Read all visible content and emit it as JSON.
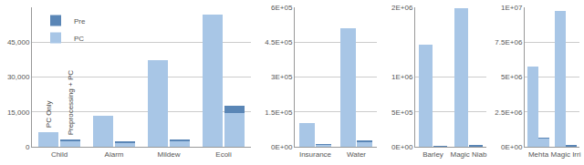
{
  "chart_data": [
    {
      "type": "bar",
      "stacked": true,
      "grid": true,
      "legend": "upper left",
      "bar_labels": [
        "PC Only",
        "Preprocessing + PC"
      ],
      "categories": [
        "Child",
        "Alarm",
        "Mildew",
        "Ecoli"
      ],
      "ylim": [
        0,
        60000
      ],
      "yticks": [
        0,
        {
          "value": 15000,
          "label": "15,000"
        },
        {
          "value": 30000,
          "label": "30,000"
        },
        {
          "value": 45000,
          "label": "45,000"
        }
      ],
      "series": [
        {
          "name": "PC",
          "color": "#a8c6e6",
          "values": [
            [
              6200,
              2700
            ],
            [
              13500,
              1900
            ],
            [
              37300,
              2500
            ],
            [
              57000,
              14500
            ]
          ]
        },
        {
          "name": "Pre",
          "color": "#5a86b6",
          "values": [
            [
              null,
              300
            ],
            [
              null,
              300
            ],
            [
              null,
              400
            ],
            [
              null,
              3000
            ]
          ]
        }
      ]
    },
    {
      "type": "bar",
      "stacked": true,
      "grid": true,
      "categories": [
        "Insurance",
        "Water"
      ],
      "ylim": [
        0,
        600000
      ],
      "yticks": [
        {
          "value": 0,
          "label": "0E+00"
        },
        {
          "value": 150000,
          "label": "1.5E+05"
        },
        {
          "value": 300000,
          "label": "3E+05"
        },
        {
          "value": 450000,
          "label": "4.5E+05"
        },
        {
          "value": 600000,
          "label": "6E+05"
        }
      ],
      "series": [
        {
          "name": "PC",
          "color": "#a8c6e6",
          "values": [
            [
              101000,
              9000
            ],
            [
              510000,
              18000
            ]
          ]
        },
        {
          "name": "Pre",
          "color": "#5a86b6",
          "values": [
            [
              null,
              2000
            ],
            [
              null,
              8000
            ]
          ]
        }
      ]
    },
    {
      "type": "bar",
      "stacked": true,
      "grid": true,
      "categories": [
        "Barley",
        "Magic Niab"
      ],
      "ylim": [
        0,
        2000000
      ],
      "yticks": [
        {
          "value": 0,
          "label": "0E+00"
        },
        {
          "value": 500000,
          "label": "5E+05"
        },
        {
          "value": 1000000,
          "label": "1E+06"
        },
        {
          "value": 2000000,
          "label": "2E+06"
        }
      ],
      "series": [
        {
          "name": "PC",
          "color": "#a8c6e6",
          "values": [
            [
              1460000,
              4000
            ],
            [
              1990000,
              12000
            ]
          ]
        },
        {
          "name": "Pre",
          "color": "#5a86b6",
          "values": [
            [
              null,
              1000
            ],
            [
              null,
              3000
            ]
          ]
        }
      ]
    },
    {
      "type": "bar",
      "stacked": true,
      "grid": true,
      "categories": [
        "Mehta",
        "Magic Irri"
      ],
      "ylim": [
        0,
        10000000
      ],
      "yticks": [
        {
          "value": 0,
          "label": "0E+00"
        },
        {
          "value": 2500000,
          "label": "2.5E+06"
        },
        {
          "value": 5000000,
          "label": "5E+06"
        },
        {
          "value": 7500000,
          "label": "7.5E+06"
        },
        {
          "value": 10000000,
          "label": "1E+07"
        }
      ],
      "series": [
        {
          "name": "PC",
          "color": "#a8c6e6",
          "values": [
            [
              5750000,
              600000
            ],
            [
              9750000,
              60000
            ]
          ]
        },
        {
          "name": "Pre",
          "color": "#5a86b6",
          "values": [
            [
              null,
              20000
            ],
            [
              null,
              10000
            ]
          ]
        }
      ]
    }
  ]
}
